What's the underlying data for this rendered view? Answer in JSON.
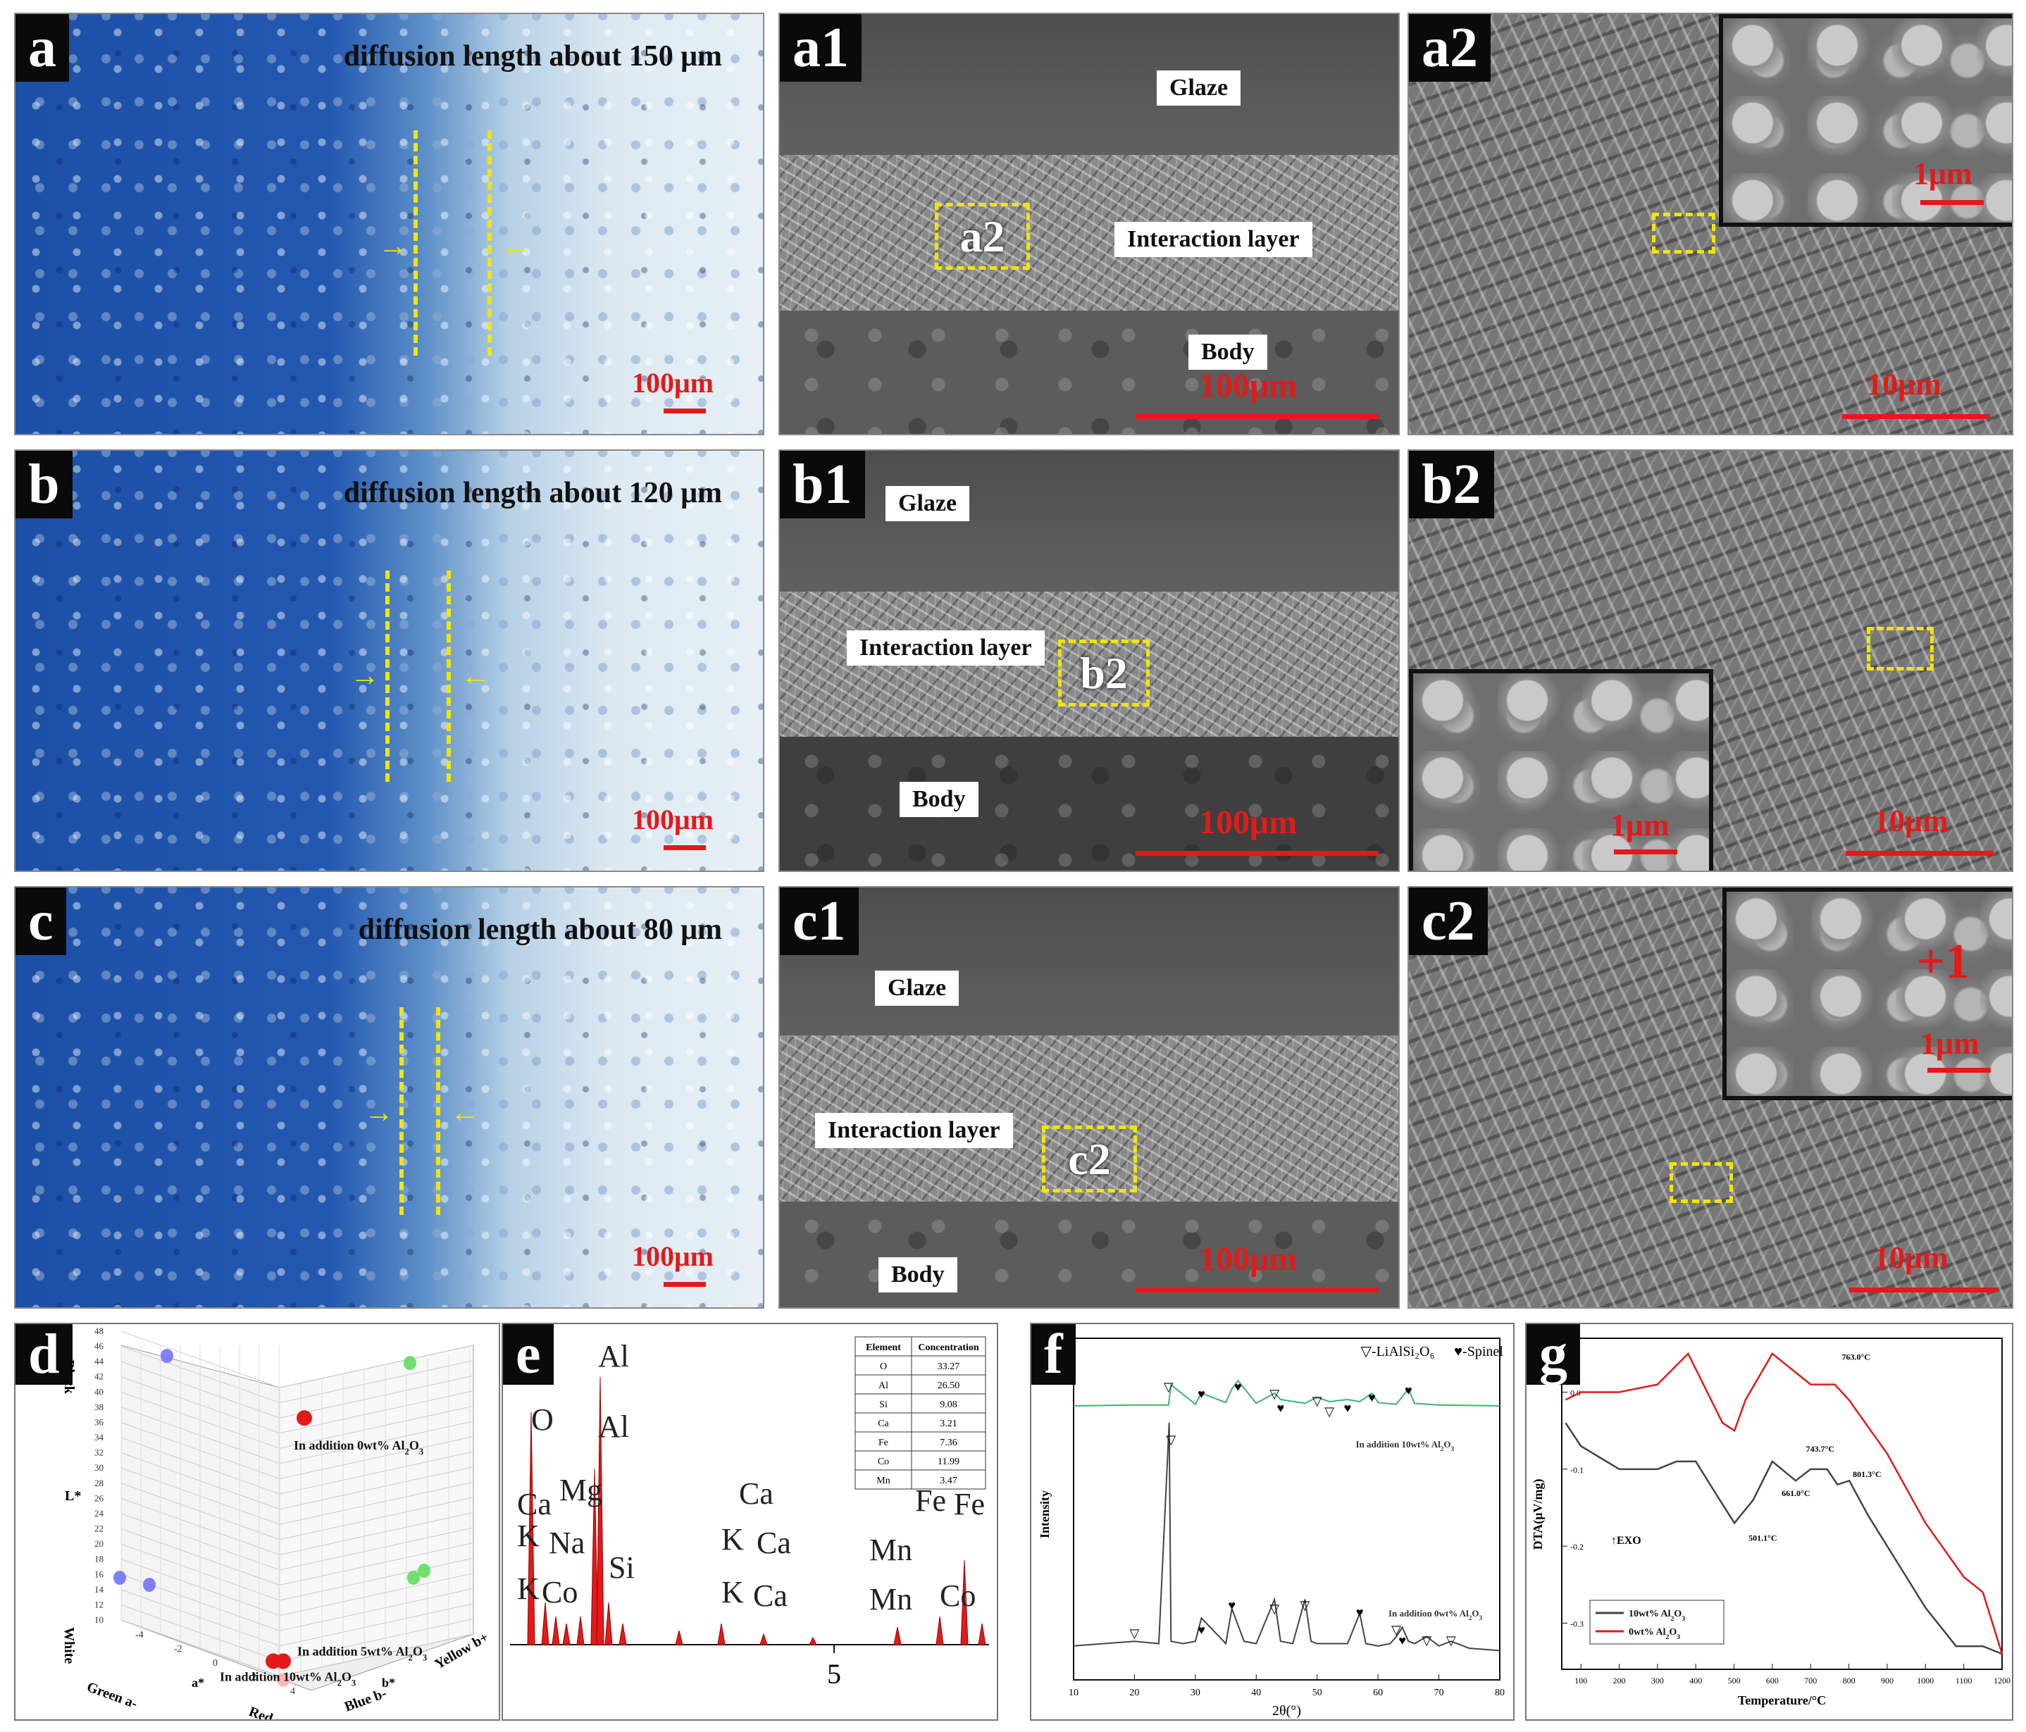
{
  "row_a": {
    "optical": {
      "letter": "a",
      "title": "diffusion length about 150 μm",
      "scale": "100μm"
    },
    "sem": {
      "letter": "a1",
      "glaze": "Glaze",
      "interaction": "Interaction layer",
      "body": "Body",
      "box": "a2",
      "scale": "100μm"
    },
    "zoom": {
      "letter": "a2",
      "inset_scale": "1μm",
      "scale": "10μm"
    }
  },
  "row_b": {
    "optical": {
      "letter": "b",
      "title": "diffusion length about 120 μm",
      "scale": "100μm"
    },
    "sem": {
      "letter": "b1",
      "glaze": "Glaze",
      "interaction": "Interaction layer",
      "body": "Body",
      "box": "b2",
      "scale": "100μm"
    },
    "zoom": {
      "letter": "b2",
      "inset_scale": "1μm",
      "scale": "10μm"
    }
  },
  "row_c": {
    "optical": {
      "letter": "c",
      "title": "diffusion length about 80 μm",
      "scale": "100μm"
    },
    "sem": {
      "letter": "c1",
      "glaze": "Glaze",
      "interaction": "Interaction layer",
      "body": "Body",
      "box": "c2",
      "scale": "100μm"
    },
    "zoom": {
      "letter": "c2",
      "inset_scale": "1μm",
      "inset_mark": "+1",
      "scale": "10μm"
    }
  },
  "colors": {
    "accent_red": "#e21a1a",
    "yellow": "#f2e600",
    "green": "#3cb371",
    "black": "#222222"
  },
  "chart_data": [
    {
      "id": "d",
      "type": "scatter",
      "letter": "d",
      "axes": {
        "z_label": "L*",
        "z_top": "Black",
        "z_bottom": "White",
        "x_label": "a*",
        "x_neg": "Green a-",
        "x_pos": "Red a+",
        "y_label": "b*",
        "y_neg": "Blue b-",
        "y_pos": "Yellow b+"
      },
      "z_ticks": [
        10,
        12,
        14,
        16,
        18,
        20,
        22,
        24,
        26,
        28,
        30,
        32,
        34,
        36,
        38,
        40,
        42,
        44,
        46,
        48
      ],
      "x_ticks": [
        -4,
        -2,
        0,
        2,
        4
      ],
      "annotations": [
        "In addition 0wt% Al2O3",
        "In addition 5wt% Al2O3",
        "In addition 10wt% Al2O3"
      ],
      "series": [
        {
          "name": "In addition 0wt% Al2O3",
          "color": "#e21a1a",
          "points": [
            [
              0.2,
              -0.5,
              44
            ]
          ]
        },
        {
          "name": "In addition 5wt% Al2O3",
          "color": "#e21a1a",
          "points": [
            [
              0.3,
              -0.5,
              10
            ]
          ]
        },
        {
          "name": "In addition 10wt% Al2O3",
          "color": "#e21a1a",
          "points": [
            [
              0.0,
              -0.5,
              10
            ]
          ]
        }
      ]
    },
    {
      "id": "e",
      "type": "bar",
      "letter": "e",
      "x_tick": "5",
      "peak_labels": [
        "O",
        "Al",
        "Al",
        "Ca",
        "Mg",
        "K",
        "Na",
        "K",
        "Co",
        "Si",
        "Ca",
        "K",
        "Ca",
        "K",
        "Ca",
        "Mn",
        "Mn",
        "Fe",
        "Fe",
        "Co"
      ],
      "table": {
        "headers": [
          "Element",
          "Concentration"
        ],
        "rows": [
          [
            "O",
            "33.27"
          ],
          [
            "Al",
            "26.50"
          ],
          [
            "Si",
            "9.08"
          ],
          [
            "Ca",
            "3.21"
          ],
          [
            "Fe",
            "7.36"
          ],
          [
            "Co",
            "11.99"
          ],
          [
            "Mn",
            "3.47"
          ]
        ]
      }
    },
    {
      "id": "f",
      "type": "line",
      "letter": "f",
      "xlabel": "2θ(°)",
      "ylabel": "Intensity",
      "x_ticks": [
        10,
        20,
        30,
        40,
        50,
        60,
        70,
        80
      ],
      "legend": [
        "▽-LiAlSi2O6",
        "♥-Spinel"
      ],
      "series": [
        {
          "name": "In addition 10wt% Al2O3",
          "color": "#3cb371",
          "x": [
            10,
            20,
            25.6,
            26,
            30,
            31,
            35,
            36,
            37,
            40,
            43,
            44,
            48,
            50,
            52,
            55,
            57,
            59,
            60,
            62,
            63,
            65,
            66,
            70,
            80
          ],
          "y": [
            40,
            42,
            42,
            90,
            44,
            70,
            48,
            80,
            100,
            46,
            70,
            55,
            46,
            60,
            50,
            55,
            50,
            70,
            48,
            45,
            44,
            80,
            46,
            42,
            40
          ]
        },
        {
          "name": "In addition 0wt% Al2O3",
          "color": "#444444",
          "x": [
            10,
            20,
            24,
            25.7,
            26,
            28,
            30,
            31,
            35,
            36,
            38,
            40,
            43,
            44,
            46,
            48,
            49,
            50,
            55,
            57,
            58,
            60,
            62,
            63,
            64,
            65,
            66,
            68,
            70,
            72,
            75,
            80
          ],
          "y": [
            4,
            6,
            5,
            100,
            6,
            5,
            6,
            16,
            5,
            20,
            6,
            5,
            24,
            6,
            5,
            24,
            6,
            5,
            5,
            18,
            5,
            4,
            5,
            8,
            12,
            6,
            5,
            8,
            4,
            6,
            3,
            2
          ]
        }
      ]
    },
    {
      "id": "g",
      "type": "line",
      "letter": "g",
      "xlabel": "Temperature/°C",
      "ylabel": "DTA(μV/mg)",
      "x_ticks": [
        100,
        200,
        300,
        400,
        500,
        600,
        700,
        800,
        900,
        1000,
        1100,
        1200
      ],
      "y_ticks": [
        0.0,
        -0.1,
        -0.2,
        -0.3
      ],
      "exo_label": "EXO",
      "annotations": [
        "763.0°C",
        "743.7°C",
        "801.3°C",
        "661.0°C",
        "501.1°C"
      ],
      "series": [
        {
          "name": "10wt% Al2O3",
          "color": "#444444",
          "x": [
            60,
            100,
            200,
            300,
            350,
            400,
            450,
            501,
            550,
            600,
            661,
            700,
            743,
            770,
            801,
            850,
            900,
            1000,
            1080,
            1150,
            1200
          ],
          "y": [
            -0.04,
            -0.07,
            -0.1,
            -0.1,
            -0.09,
            -0.09,
            -0.13,
            -0.17,
            -0.14,
            -0.09,
            -0.115,
            -0.1,
            -0.1,
            -0.12,
            -0.115,
            -0.16,
            -0.2,
            -0.28,
            -0.33,
            -0.33,
            -0.34
          ]
        },
        {
          "name": "0wt% Al2O3",
          "color": "#e21a1a",
          "x": [
            60,
            100,
            200,
            300,
            380,
            430,
            470,
            501,
            530,
            600,
            650,
            700,
            763,
            800,
            900,
            1000,
            1100,
            1150,
            1200
          ],
          "y": [
            -0.01,
            0.0,
            0.0,
            0.01,
            0.05,
            0.0,
            -0.04,
            -0.05,
            -0.01,
            0.05,
            0.03,
            0.01,
            0.01,
            -0.01,
            -0.08,
            -0.17,
            -0.24,
            -0.26,
            -0.34
          ]
        }
      ]
    }
  ]
}
